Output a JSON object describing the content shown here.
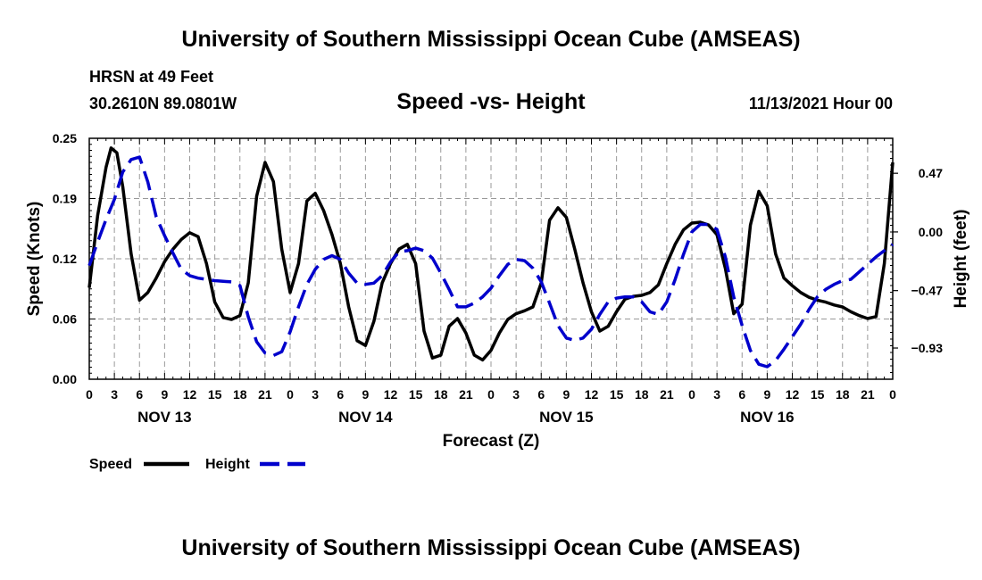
{
  "header": {
    "title": "University of Southern Mississippi Ocean Cube (AMSEAS)",
    "station": "HRSN at 49 Feet",
    "coords": "30.2610N  89.0801W",
    "subtitle": "Speed -vs- Height",
    "datetime": "11/13/2021 Hour 00"
  },
  "footer": {
    "title": "University of Southern Mississippi Ocean Cube (AMSEAS)"
  },
  "chart_data": {
    "type": "line",
    "title": "Speed -vs- Height",
    "xlabel": "Forecast (Z)",
    "ylabel": "Speed (Knots)",
    "y2label": "Height (feet)",
    "xlim": [
      0,
      96
    ],
    "ylim": [
      0,
      0.25
    ],
    "y2lim": [
      -1.18,
      0.75
    ],
    "x_tick_labels": [
      "0",
      "3",
      "6",
      "9",
      "12",
      "15",
      "18",
      "21",
      "0",
      "3",
      "6",
      "9",
      "12",
      "15",
      "18",
      "21",
      "0",
      "3",
      "6",
      "9",
      "12",
      "15",
      "18",
      "21",
      "0",
      "3",
      "6",
      "9",
      "12",
      "15",
      "18",
      "21",
      "0"
    ],
    "day_labels": [
      {
        "hour": 9,
        "label": "NOV 13"
      },
      {
        "hour": 33,
        "label": "NOV 14"
      },
      {
        "hour": 57,
        "label": "NOV 15"
      },
      {
        "hour": 81,
        "label": "NOV 16"
      }
    ],
    "y_ticks": [
      "0.00",
      "0.06",
      "0.12",
      "0.19",
      "0.25"
    ],
    "y2_ticks": [
      "0.47",
      "0.00",
      "−0.47",
      "−0.93"
    ],
    "y2_tick_values": [
      0.47,
      0.0,
      -0.47,
      -0.93
    ],
    "legend": [
      "Speed",
      "Height"
    ],
    "legend_position": "bottom-left",
    "series": [
      {
        "name": "Speed",
        "color": "#000000",
        "style": "solid",
        "axis": "left",
        "x": [
          0,
          1,
          2,
          2.6,
          3.3,
          4,
          5,
          6,
          7,
          8,
          9,
          10,
          11,
          12,
          13,
          14,
          15,
          16,
          17,
          18,
          19,
          20,
          21,
          22,
          23,
          24,
          25,
          26,
          27,
          28,
          29,
          30,
          31,
          32,
          33,
          34,
          35,
          36,
          37,
          38,
          39,
          40,
          41,
          42,
          43,
          44,
          45,
          46,
          47,
          48,
          49,
          50,
          51,
          52,
          53,
          54,
          55,
          56,
          57,
          58,
          59,
          60,
          61,
          62,
          63,
          64,
          65,
          66,
          67,
          68,
          69,
          70,
          71,
          72,
          73,
          74,
          75,
          76,
          77,
          78,
          79,
          80,
          81,
          82,
          83,
          84,
          85,
          86,
          87,
          88,
          89,
          90,
          91,
          92,
          93,
          94,
          95,
          96
        ],
        "values": [
          0.095,
          0.17,
          0.22,
          0.24,
          0.235,
          0.2,
          0.13,
          0.082,
          0.09,
          0.105,
          0.122,
          0.135,
          0.145,
          0.152,
          0.148,
          0.12,
          0.08,
          0.064,
          0.062,
          0.066,
          0.1,
          0.19,
          0.225,
          0.205,
          0.135,
          0.09,
          0.12,
          0.185,
          0.193,
          0.175,
          0.15,
          0.12,
          0.075,
          0.04,
          0.035,
          0.06,
          0.1,
          0.12,
          0.135,
          0.14,
          0.12,
          0.05,
          0.022,
          0.025,
          0.055,
          0.063,
          0.048,
          0.025,
          0.02,
          0.03,
          0.048,
          0.062,
          0.068,
          0.071,
          0.075,
          0.1,
          0.165,
          0.178,
          0.168,
          0.135,
          0.1,
          0.07,
          0.05,
          0.055,
          0.07,
          0.083,
          0.086,
          0.087,
          0.09,
          0.098,
          0.12,
          0.14,
          0.155,
          0.162,
          0.163,
          0.16,
          0.15,
          0.115,
          0.068,
          0.078,
          0.16,
          0.195,
          0.18,
          0.13,
          0.105,
          0.097,
          0.09,
          0.085,
          0.082,
          0.08,
          0.077,
          0.075,
          0.07,
          0.066,
          0.063,
          0.065,
          0.12,
          0.225
        ]
      },
      {
        "name": "Height",
        "color": "#0000cc",
        "style": "dashed",
        "axis": "right",
        "x": [
          0,
          1,
          2,
          3,
          4,
          5,
          6,
          7,
          8,
          9,
          10,
          11,
          12,
          13,
          14,
          15,
          16,
          17,
          18,
          19,
          20,
          21,
          22,
          23,
          24,
          25,
          26,
          27,
          28,
          29,
          30,
          31,
          32,
          33,
          34,
          35,
          36,
          37,
          38,
          39,
          40,
          41,
          42,
          43,
          44,
          45,
          46,
          47,
          48,
          49,
          50,
          51,
          52,
          53,
          54,
          55,
          56,
          57,
          58,
          59,
          60,
          61,
          62,
          63,
          64,
          65,
          66,
          67,
          68,
          69,
          70,
          71,
          72,
          73,
          74,
          75,
          76,
          77,
          78,
          79,
          80,
          81,
          82,
          83,
          84,
          85,
          86,
          87,
          88,
          89,
          90,
          91,
          92,
          93,
          94,
          95,
          96
        ],
        "values": [
          -0.27,
          -0.08,
          0.1,
          0.26,
          0.48,
          0.58,
          0.6,
          0.4,
          0.12,
          -0.03,
          -0.17,
          -0.3,
          -0.35,
          -0.37,
          -0.38,
          -0.39,
          -0.395,
          -0.4,
          -0.43,
          -0.68,
          -0.88,
          -0.97,
          -0.99,
          -0.96,
          -0.8,
          -0.6,
          -0.42,
          -0.3,
          -0.22,
          -0.19,
          -0.22,
          -0.33,
          -0.41,
          -0.42,
          -0.41,
          -0.35,
          -0.24,
          -0.16,
          -0.15,
          -0.13,
          -0.15,
          -0.21,
          -0.33,
          -0.46,
          -0.6,
          -0.6,
          -0.57,
          -0.52,
          -0.45,
          -0.35,
          -0.26,
          -0.22,
          -0.23,
          -0.29,
          -0.4,
          -0.57,
          -0.75,
          -0.85,
          -0.87,
          -0.85,
          -0.78,
          -0.66,
          -0.56,
          -0.53,
          -0.52,
          -0.52,
          -0.56,
          -0.64,
          -0.66,
          -0.56,
          -0.38,
          -0.18,
          0.0,
          0.06,
          0.06,
          0.02,
          -0.2,
          -0.52,
          -0.75,
          -0.95,
          -1.06,
          -1.08,
          -1.03,
          -0.94,
          -0.84,
          -0.74,
          -0.62,
          -0.52,
          -0.46,
          -0.42,
          -0.39,
          -0.38,
          -0.32,
          -0.26,
          -0.2,
          -0.15,
          -0.1
        ]
      }
    ]
  }
}
